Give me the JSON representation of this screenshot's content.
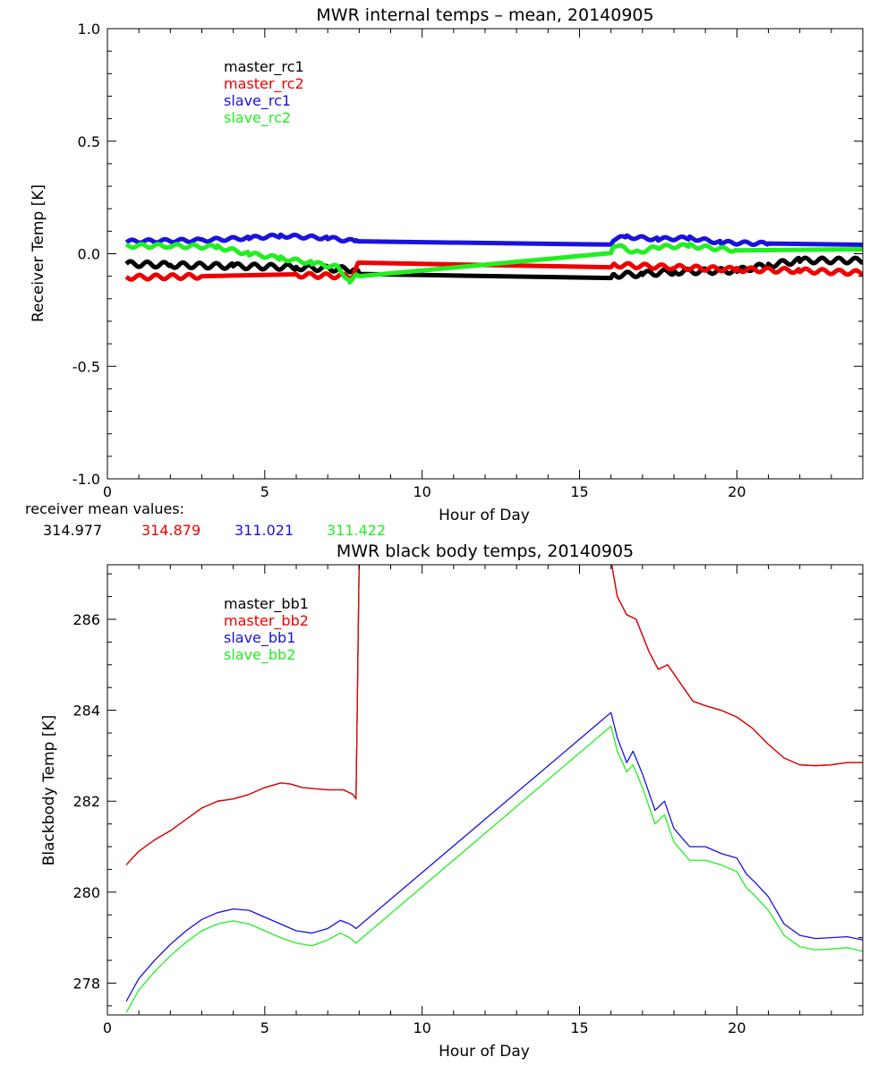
{
  "colors": {
    "black": "#000000",
    "red": "#ee0000",
    "blue": "#1a12dd",
    "green": "#22ee22",
    "darkred": "#8b0000"
  },
  "chart_data": [
    {
      "type": "line",
      "title": "MWR internal temps – mean, 20140905",
      "xlabel": "Hour of Day",
      "ylabel": "Receiver Temp [K]",
      "xlim": [
        0,
        24
      ],
      "ylim": [
        -1.0,
        1.0
      ],
      "xticks": [
        0,
        5,
        10,
        15,
        20
      ],
      "yticks": [
        -1.0,
        -0.5,
        0.0,
        0.5,
        1.0
      ],
      "ytick_labels": [
        "-1.0",
        "-0.5",
        "0.0",
        "0.5",
        "1.0"
      ],
      "legend_position": "top-left",
      "series": [
        {
          "name": "master_rc1",
          "color": "#000000",
          "noise": 0.012,
          "x": [
            0.6,
            2,
            4,
            6,
            7.8,
            8.0,
            16.0,
            16.1,
            17,
            18,
            20,
            21,
            22,
            24
          ],
          "y": [
            -0.045,
            -0.05,
            -0.055,
            -0.06,
            -0.07,
            -0.09,
            -0.105,
            -0.095,
            -0.09,
            -0.08,
            -0.075,
            -0.05,
            -0.03,
            -0.03
          ]
        },
        {
          "name": "master_rc2",
          "color": "#ee0000",
          "noise": 0.01,
          "x": [
            0.6,
            3,
            6,
            7.8,
            8.0,
            16.0,
            16.1,
            18,
            20,
            22,
            24
          ],
          "y": [
            -0.105,
            -0.1,
            -0.095,
            -0.1,
            -0.04,
            -0.055,
            -0.05,
            -0.06,
            -0.07,
            -0.075,
            -0.085
          ]
        },
        {
          "name": "slave_rc1",
          "color": "#1a12dd",
          "noise": 0.007,
          "x": [
            0.6,
            3,
            4.5,
            5.5,
            7,
            7.9,
            8.0,
            16.0,
            16.1,
            16.5,
            17.5,
            18.5,
            19.5,
            21,
            24
          ],
          "y": [
            0.055,
            0.06,
            0.07,
            0.08,
            0.07,
            0.055,
            0.055,
            0.035,
            0.065,
            0.075,
            0.065,
            0.07,
            0.05,
            0.045,
            0.04
          ]
        },
        {
          "name": "slave_rc2",
          "color": "#22ee22",
          "noise": 0.008,
          "x": [
            0.6,
            2,
            3.5,
            4.5,
            5.5,
            6.5,
            7.3,
            7.7,
            7.9,
            8.0,
            16.0,
            16.1,
            16.8,
            17.5,
            18.5,
            20,
            24
          ],
          "y": [
            0.035,
            0.035,
            0.03,
            0.0,
            -0.02,
            -0.04,
            -0.06,
            -0.12,
            -0.1,
            -0.1,
            -0.005,
            0.04,
            0.005,
            0.03,
            0.035,
            0.015,
            0.02
          ]
        }
      ],
      "legend": [
        {
          "label": "master_rc1",
          "color": "#000000"
        },
        {
          "label": "master_rc2",
          "color": "#ee0000"
        },
        {
          "label": "slave_rc1",
          "color": "#1a12dd"
        },
        {
          "label": "slave_rc2",
          "color": "#22ee22"
        }
      ]
    },
    {
      "type": "line",
      "title": "MWR black body temps, 20140905",
      "xlabel": "Hour of Day",
      "ylabel": "Blackbody Temp [K]",
      "xlim": [
        0,
        24
      ],
      "ylim": [
        277.3,
        287.2
      ],
      "xticks": [
        0,
        5,
        10,
        15,
        20
      ],
      "yticks": [
        278,
        280,
        282,
        284,
        286
      ],
      "ytick_labels": [
        "278",
        "280",
        "282",
        "284",
        "286"
      ],
      "legend_position": "top-left",
      "series": [
        {
          "name": "master_bb1",
          "color": "#000000",
          "x": [
            0.6,
            1,
            1.5,
            2,
            2.5,
            3,
            3.5,
            4,
            4.5,
            5,
            5.5,
            5.8,
            6.2,
            7.0,
            7.5,
            7.8,
            7.9,
            8.0,
            8.1,
            16.0,
            16.2,
            16.5,
            16.8,
            17.2,
            17.5,
            17.8,
            18.2,
            18.6,
            19.0,
            19.5,
            20.0,
            20.5,
            21.0,
            21.5,
            22.0,
            22.5,
            23.0,
            23.5,
            24.0
          ],
          "y": [
            280.6,
            280.9,
            281.15,
            281.35,
            281.6,
            281.85,
            282.0,
            282.05,
            282.15,
            282.3,
            282.4,
            282.38,
            282.3,
            282.25,
            282.25,
            282.15,
            282.05,
            287.3,
            287.3,
            287.3,
            286.5,
            286.1,
            286.0,
            285.3,
            284.9,
            285.0,
            284.6,
            284.2,
            284.1,
            284.0,
            283.85,
            283.6,
            283.25,
            282.95,
            282.8,
            282.78,
            282.8,
            282.85,
            282.85
          ]
        },
        {
          "name": "master_bb2",
          "color": "#ee0000",
          "x": [
            0.6,
            1,
            1.5,
            2,
            2.5,
            3,
            3.5,
            4,
            4.5,
            5,
            5.5,
            5.8,
            6.2,
            7.0,
            7.5,
            7.8,
            7.9,
            8.0,
            8.1,
            16.0,
            16.2,
            16.5,
            16.8,
            17.2,
            17.5,
            17.8,
            18.2,
            18.6,
            19.0,
            19.5,
            20.0,
            20.5,
            21.0,
            21.5,
            22.0,
            22.5,
            23.0,
            23.5,
            24.0
          ],
          "y": [
            280.6,
            280.9,
            281.15,
            281.35,
            281.6,
            281.85,
            282.0,
            282.05,
            282.15,
            282.3,
            282.4,
            282.38,
            282.3,
            282.25,
            282.25,
            282.15,
            282.05,
            287.3,
            287.3,
            287.3,
            286.5,
            286.1,
            286.0,
            285.3,
            284.9,
            285.0,
            284.6,
            284.2,
            284.1,
            284.0,
            283.85,
            283.6,
            283.25,
            282.95,
            282.8,
            282.78,
            282.8,
            282.85,
            282.85
          ]
        },
        {
          "name": "slave_bb1",
          "color": "#1a12dd",
          "x": [
            0.6,
            1.0,
            1.5,
            2.0,
            2.5,
            3.0,
            3.5,
            4.0,
            4.5,
            5.0,
            5.5,
            6.0,
            6.5,
            7.0,
            7.4,
            7.7,
            7.9,
            16.0,
            16.2,
            16.5,
            16.7,
            17.0,
            17.4,
            17.7,
            18.0,
            18.5,
            19.0,
            19.5,
            20.0,
            20.3,
            20.6,
            21.0,
            21.5,
            22.0,
            22.5,
            23.0,
            23.5,
            24.0
          ],
          "y": [
            277.6,
            278.1,
            278.5,
            278.85,
            279.15,
            279.4,
            279.55,
            279.63,
            279.6,
            279.45,
            279.3,
            279.15,
            279.1,
            279.2,
            279.38,
            279.3,
            279.2,
            283.95,
            283.4,
            282.85,
            283.1,
            282.6,
            281.8,
            282.0,
            281.4,
            281.0,
            281.0,
            280.85,
            280.75,
            280.4,
            280.2,
            279.9,
            279.3,
            279.05,
            278.98,
            279.0,
            279.02,
            278.95
          ]
        },
        {
          "name": "slave_bb2",
          "color": "#22ee22",
          "x": [
            0.6,
            1.0,
            1.5,
            2.0,
            2.5,
            3.0,
            3.5,
            4.0,
            4.5,
            5.0,
            5.5,
            6.0,
            6.5,
            7.0,
            7.4,
            7.7,
            7.9,
            16.0,
            16.2,
            16.5,
            16.7,
            17.0,
            17.4,
            17.7,
            18.0,
            18.5,
            19.0,
            19.5,
            20.0,
            20.3,
            20.6,
            21.0,
            21.5,
            22.0,
            22.5,
            23.0,
            23.5,
            24.0
          ],
          "y": [
            277.35,
            277.85,
            278.25,
            278.6,
            278.9,
            279.15,
            279.3,
            279.37,
            279.3,
            279.15,
            279.0,
            278.88,
            278.82,
            278.95,
            279.1,
            279.0,
            278.88,
            283.65,
            283.1,
            282.65,
            282.8,
            282.3,
            281.5,
            281.7,
            281.1,
            280.7,
            280.7,
            280.6,
            280.45,
            280.1,
            279.9,
            279.6,
            279.05,
            278.8,
            278.73,
            278.75,
            278.78,
            278.7
          ]
        }
      ],
      "legend": [
        {
          "label": "master_bb1",
          "color": "#000000"
        },
        {
          "label": "master_bb2",
          "color": "#ee0000"
        },
        {
          "label": "slave_bb1",
          "color": "#1a12dd"
        },
        {
          "label": "slave_bb2",
          "color": "#22ee22"
        }
      ]
    }
  ],
  "receiver_summary": {
    "label": "receiver mean values:",
    "values": [
      {
        "text": "314.977",
        "color": "#000000"
      },
      {
        "text": "314.879",
        "color": "#ee0000"
      },
      {
        "text": "311.021",
        "color": "#1a12dd"
      },
      {
        "text": "311.422",
        "color": "#22ee22"
      }
    ]
  }
}
